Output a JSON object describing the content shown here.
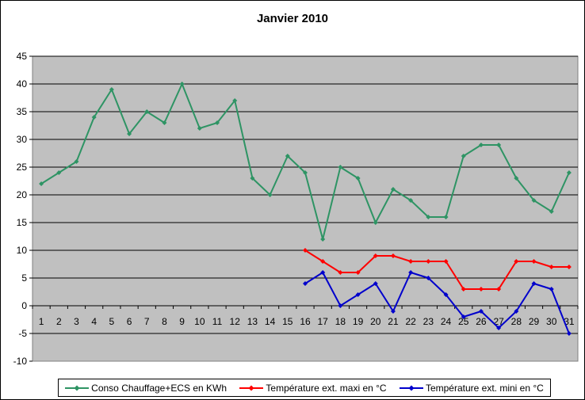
{
  "chart_data": {
    "type": "line",
    "title": "Janvier 2010",
    "xlabel": "",
    "ylabel": "",
    "categories": [
      "1",
      "2",
      "3",
      "4",
      "5",
      "6",
      "7",
      "8",
      "9",
      "10",
      "11",
      "12",
      "13",
      "14",
      "15",
      "16",
      "17",
      "18",
      "19",
      "20",
      "21",
      "22",
      "23",
      "24",
      "25",
      "26",
      "27",
      "28",
      "29",
      "30",
      "31"
    ],
    "ylim": [
      -10,
      45
    ],
    "yticks": [
      -10,
      -5,
      0,
      5,
      10,
      15,
      20,
      25,
      30,
      35,
      40,
      45
    ],
    "grid": true,
    "legend_position": "bottom",
    "series": [
      {
        "name": "Conso Chauffage+ECS en KWh",
        "color": "#2e9464",
        "values": [
          22,
          24,
          26,
          34,
          39,
          31,
          35,
          33,
          40,
          32,
          33,
          37,
          23,
          20,
          27,
          24,
          12,
          25,
          23,
          15,
          21,
          19,
          16,
          16,
          27,
          29,
          29,
          23,
          19,
          17,
          24
        ]
      },
      {
        "name": "Température ext. maxi en °C",
        "color": "#ff0000",
        "values": [
          null,
          null,
          null,
          null,
          null,
          null,
          null,
          null,
          null,
          null,
          null,
          null,
          null,
          null,
          null,
          10,
          8,
          6,
          6,
          9,
          9,
          8,
          8,
          8,
          3,
          3,
          3,
          8,
          8,
          7,
          7
        ]
      },
      {
        "name": "Température ext. mini en °C",
        "color": "#0000cc",
        "values": [
          null,
          null,
          null,
          null,
          null,
          null,
          null,
          null,
          null,
          null,
          null,
          null,
          null,
          null,
          null,
          4,
          6,
          0,
          2,
          4,
          -1,
          6,
          5,
          2,
          -2,
          -1,
          -4,
          -1,
          4,
          3,
          -5
        ]
      }
    ]
  },
  "colors": {
    "plot_background": "#c0c0c0",
    "gridline": "#000000",
    "axis": "#808080"
  }
}
